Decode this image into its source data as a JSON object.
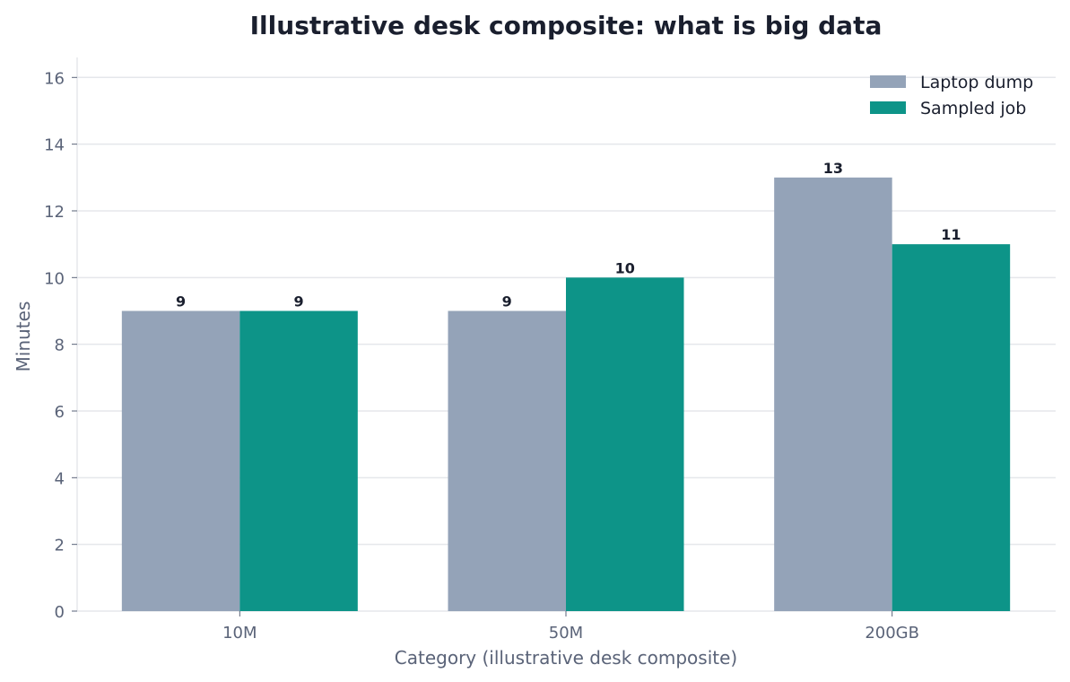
{
  "chart_data": {
    "type": "bar",
    "title": "Illustrative desk composite: what is big data",
    "xlabel": "Category (illustrative desk composite)",
    "ylabel": "Minutes",
    "categories": [
      "10M",
      "50M",
      "200GB"
    ],
    "series": [
      {
        "name": "Laptop dump",
        "values": [
          9,
          9,
          13
        ],
        "color": "#94a3b8"
      },
      {
        "name": "Sampled job",
        "values": [
          9,
          10,
          11
        ],
        "color": "#0d9488"
      }
    ],
    "ylim": [
      0,
      16.6
    ],
    "yticks": [
      0,
      2,
      4,
      6,
      8,
      10,
      12,
      14,
      16
    ],
    "grid": true,
    "legend": "top-right"
  }
}
